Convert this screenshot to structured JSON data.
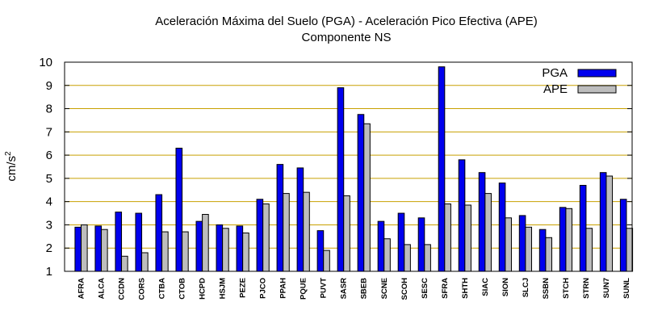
{
  "chart_data": {
    "type": "bar",
    "title": "Aceleración Máxima del Suelo (PGA) -  Aceleración Pico Efectiva (APE)",
    "subtitle": "Componente NS",
    "xlabel": "",
    "ylabel": "cm/s",
    "ylabel_superscript": "2",
    "ylim": [
      1,
      10
    ],
    "yticks": [
      "1",
      "2",
      "3",
      "4",
      "5",
      "6",
      "7",
      "8",
      "9",
      "10"
    ],
    "grid": "horizontal",
    "legend_position": "top-right",
    "categories": [
      "AFRA",
      "ALCA",
      "CCDN",
      "CORS",
      "CTBA",
      "CTOB",
      "HCPD",
      "HSJM",
      "PEZE",
      "PJCO",
      "PPAH",
      "PQUE",
      "PUVT",
      "SASR",
      "SBEB",
      "SCNE",
      "SCOH",
      "SESC",
      "SFRA",
      "SHTH",
      "SIAC",
      "SION",
      "SLCJ",
      "SSBN",
      "STCH",
      "STRN",
      "SUN7",
      "SUNL"
    ],
    "series": [
      {
        "name": "PGA",
        "color": "#0000ee",
        "values": [
          2.9,
          2.95,
          3.55,
          3.5,
          4.3,
          6.3,
          3.15,
          3.0,
          2.95,
          4.1,
          5.6,
          5.45,
          2.75,
          8.9,
          7.75,
          3.15,
          3.5,
          3.3,
          9.8,
          5.8,
          5.25,
          4.8,
          3.4,
          2.8,
          3.75,
          4.7,
          5.25,
          4.1
        ]
      },
      {
        "name": "APE",
        "color": "#bdbdbd",
        "values": [
          3.0,
          2.8,
          1.65,
          1.8,
          2.7,
          2.7,
          3.45,
          2.85,
          2.65,
          3.9,
          4.35,
          4.4,
          1.9,
          4.25,
          7.35,
          2.4,
          2.15,
          2.15,
          3.9,
          3.85,
          4.35,
          3.3,
          2.9,
          2.45,
          3.7,
          2.85,
          5.1,
          2.85
        ]
      }
    ],
    "colors": {
      "grid": "#c8a000",
      "frame": "#000000"
    }
  }
}
